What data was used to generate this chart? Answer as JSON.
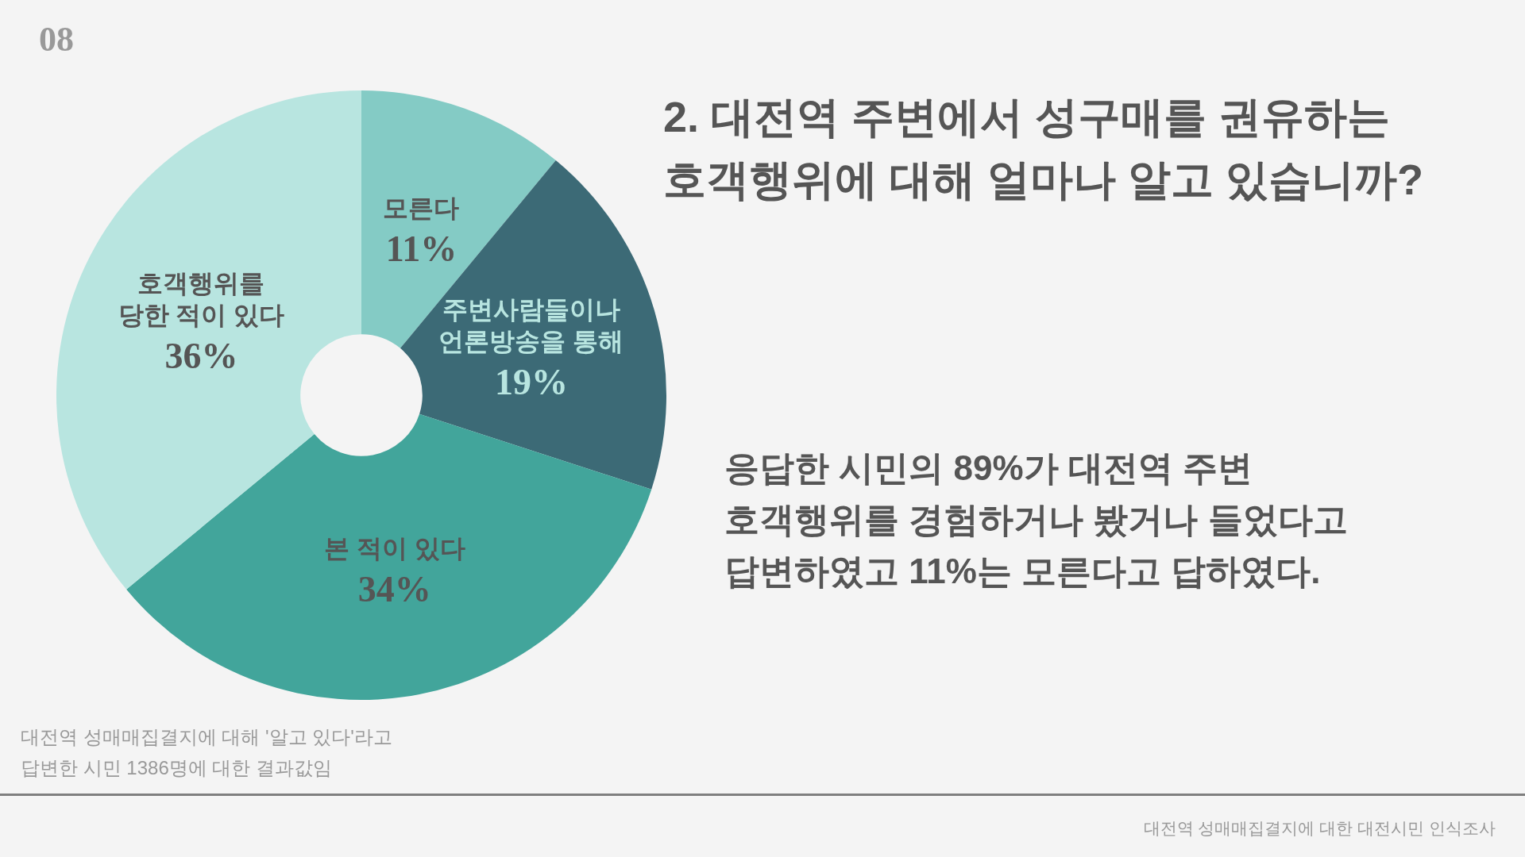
{
  "chart_data": {
    "type": "donut",
    "title": "2. 대전역 주변에서 성구매를 권유하는\n호객행위에 대해 얼마나 알고 있습니까?",
    "categories": [
      "모른다",
      "주변사람들이나\n언론방송을 통해",
      "본 적이 있다",
      "호객행위를\n당한 적이 있다"
    ],
    "values": [
      11,
      19,
      34,
      36
    ],
    "colors": [
      "#84cbc5",
      "#3c6a76",
      "#42a59b",
      "#b8e5e0"
    ],
    "value_labels": [
      "11%",
      "19%",
      "34%",
      "36%"
    ],
    "annotations": [
      "08",
      "응답한 시민의 89%가 대전역 주변\n호객행위를 경험하거나 봤거나 들었다고\n답변하였고 11%는 모른다고 답하였다.",
      "대전역 성매매집결지에 대해 '알고 있다'라고\n답변한 시민 1386명에 대한 결과값임",
      "대전역 성매매집결지에 대한 대전시민 인식조사"
    ]
  }
}
